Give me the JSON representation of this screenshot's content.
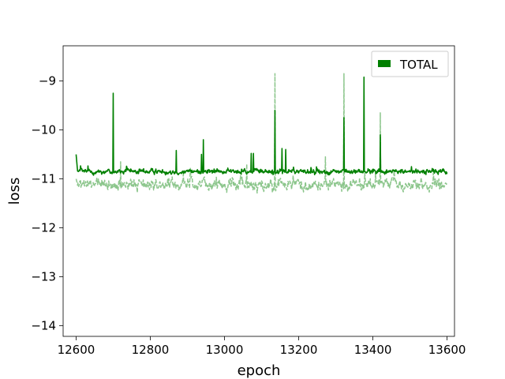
{
  "chart_data": {
    "type": "line",
    "title": "",
    "xlabel": "epoch",
    "ylabel": "loss",
    "xlim": [
      12565,
      13620
    ],
    "ylim": [
      -14.22,
      -8.28
    ],
    "xticks": [
      12600,
      12800,
      13000,
      13200,
      13400,
      13600
    ],
    "yticks": [
      -14,
      -13,
      -12,
      -11,
      -10,
      -9
    ],
    "ytick_labels": [
      "−14",
      "−13",
      "−12",
      "−11",
      "−10",
      "−9"
    ],
    "grid": false,
    "legend": {
      "position": "top-right",
      "entries": [
        "TOTAL"
      ]
    },
    "series": [
      {
        "name": "TOTAL",
        "role": "train",
        "color": "#008000",
        "style": "solid",
        "x_range": [
          12600,
          13600
        ],
        "baseline": -10.85,
        "noise": 0.06,
        "start_value": -10.5,
        "spikes": [
          {
            "x": 12700,
            "y": -9.25
          },
          {
            "x": 12870,
            "y": -10.42
          },
          {
            "x": 12938,
            "y": -10.5
          },
          {
            "x": 12943,
            "y": -10.2
          },
          {
            "x": 13072,
            "y": -10.48
          },
          {
            "x": 13078,
            "y": -10.48
          },
          {
            "x": 13136,
            "y": -9.6
          },
          {
            "x": 13155,
            "y": -10.38
          },
          {
            "x": 13165,
            "y": -10.4
          },
          {
            "x": 13322,
            "y": -9.75
          },
          {
            "x": 13376,
            "y": -8.92
          },
          {
            "x": 13420,
            "y": -10.1
          }
        ]
      },
      {
        "name": "",
        "role": "validation",
        "color": "#008000",
        "opacity": 0.45,
        "style": "dashed",
        "x_range": [
          12600,
          13600
        ],
        "baseline": -11.12,
        "noise": 0.13,
        "start_value": -11.0,
        "spikes": [
          {
            "x": 13136,
            "y": -8.85
          },
          {
            "x": 13272,
            "y": -10.55
          },
          {
            "x": 13322,
            "y": -8.85
          },
          {
            "x": 13420,
            "y": -9.65
          },
          {
            "x": 12720,
            "y": -10.65
          },
          {
            "x": 13060,
            "y": -10.7
          }
        ]
      }
    ]
  }
}
